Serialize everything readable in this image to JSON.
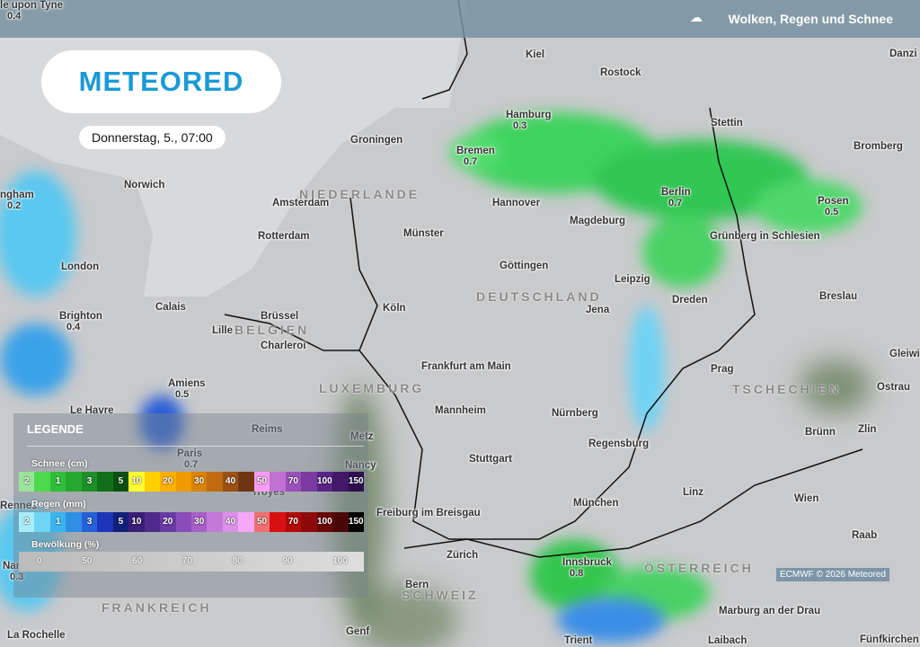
{
  "header": {
    "title": "Wolken, Regen und Schnee",
    "icon": "cloud-rain-snow-icon"
  },
  "logo": "METEORED",
  "date": "Donnerstag, 5., 07:00",
  "credit": "ECMWF © 2026 Meteored",
  "cities": [
    {
      "name": "Kiel"
    },
    {
      "name": "Rostock"
    },
    {
      "name": "Hamburg",
      "value": "0.3"
    },
    {
      "name": "Bremen",
      "value": "0.7"
    },
    {
      "name": "Groningen"
    },
    {
      "name": "Stettin"
    },
    {
      "name": "Bromberg"
    },
    {
      "name": "Norwich"
    },
    {
      "name": "Amsterdam"
    },
    {
      "name": "Hannover"
    },
    {
      "name": "Berlin",
      "value": "0.7"
    },
    {
      "name": "Posen",
      "value": "0.5"
    },
    {
      "name": "Rotterdam"
    },
    {
      "name": "Münster"
    },
    {
      "name": "Magdeburg"
    },
    {
      "name": "Grünberg in Schlesien"
    },
    {
      "name": "London"
    },
    {
      "name": "Göttingen"
    },
    {
      "name": "Leipzig"
    },
    {
      "name": "Dreden"
    },
    {
      "name": "Breslau"
    },
    {
      "name": "Brighton",
      "value": "0.4"
    },
    {
      "name": "Calais"
    },
    {
      "name": "Brüssel"
    },
    {
      "name": "Köln"
    },
    {
      "name": "Jena"
    },
    {
      "name": "Lille"
    },
    {
      "name": "Charleroi"
    },
    {
      "name": "Amiens",
      "value": "0.5"
    },
    {
      "name": "Frankfurt am Main"
    },
    {
      "name": "Prag"
    },
    {
      "name": "Le Havre"
    },
    {
      "name": "Mannheim"
    },
    {
      "name": "Nürnberg"
    },
    {
      "name": "Reims"
    },
    {
      "name": "Metz"
    },
    {
      "name": "Brünn"
    },
    {
      "name": "Zlin"
    },
    {
      "name": "Ostrau"
    },
    {
      "name": "Paris",
      "value": "0.7"
    },
    {
      "name": "Regensburg"
    },
    {
      "name": "Stuttgart"
    },
    {
      "name": "Nancy"
    },
    {
      "name": "Troyes"
    },
    {
      "name": "Linz"
    },
    {
      "name": "Wien"
    },
    {
      "name": "München"
    },
    {
      "name": "Freiburg im Breisgau"
    },
    {
      "name": "Raab"
    },
    {
      "name": "Zürich"
    },
    {
      "name": "Innsbruck",
      "value": "0.8"
    },
    {
      "name": "Nantes",
      "value": "0.3"
    },
    {
      "name": "Bern"
    },
    {
      "name": "Genf"
    },
    {
      "name": "Marburg an der Drau"
    },
    {
      "name": "La Rochelle"
    },
    {
      "name": "Trient"
    },
    {
      "name": "Laibach"
    },
    {
      "name": "Fünfkirchen"
    },
    {
      "name": "Rennes"
    },
    {
      "name": "Gleiwi"
    },
    {
      "name": "Danzi"
    },
    {
      "name": "ngham",
      "value": "0.2"
    },
    {
      "name": "le upon Tyne",
      "value": "0.4"
    }
  ],
  "countries": [
    "NIEDERLANDE",
    "DEUTSCHLAND",
    "BELGIEN",
    "LUXEMBURG",
    "TSCHECHIEN",
    "ÖSTERREICH",
    "SCHWEIZ",
    "FRANKREICH"
  ],
  "legend": {
    "title": "LEGENDE",
    "snow": {
      "label": "Schnee (cm)",
      "cells": [
        {
          "t": "2",
          "c": "#9be39b"
        },
        {
          "t": "",
          "c": "#4cd94c"
        },
        {
          "t": "1",
          "c": "#2fbf3a"
        },
        {
          "t": "",
          "c": "#26a82f"
        },
        {
          "t": "3",
          "c": "#1e8f26"
        },
        {
          "t": "",
          "c": "#10701a"
        },
        {
          "t": "5",
          "c": "#0a4f10"
        },
        {
          "t": "10",
          "c": "#ffff30"
        },
        {
          "t": "",
          "c": "#ffd000"
        },
        {
          "t": "20",
          "c": "#ffb000"
        },
        {
          "t": "",
          "c": "#f09a00"
        },
        {
          "t": "30",
          "c": "#d98300"
        },
        {
          "t": "",
          "c": "#c06a10"
        },
        {
          "t": "40",
          "c": "#9a5014"
        },
        {
          "t": "",
          "c": "#6e3612"
        },
        {
          "t": "50",
          "c": "#f79cf0"
        },
        {
          "t": "",
          "c": "#c070d0"
        },
        {
          "t": "70",
          "c": "#9a50b8"
        },
        {
          "t": "",
          "c": "#7a3aa0"
        },
        {
          "t": "100",
          "c": "#5a2486"
        },
        {
          "t": "",
          "c": "#431868"
        },
        {
          "t": "150",
          "c": "#2e0e50"
        }
      ]
    },
    "rain": {
      "label": "Regen (mm)",
      "cells": [
        {
          "t": "2",
          "c": "#a9ecfb"
        },
        {
          "t": "",
          "c": "#6fd5f5"
        },
        {
          "t": "1",
          "c": "#3ab3ee"
        },
        {
          "t": "",
          "c": "#2f8fe6"
        },
        {
          "t": "3",
          "c": "#2560d8"
        },
        {
          "t": "",
          "c": "#1c35b8"
        },
        {
          "t": "5",
          "c": "#13207a"
        },
        {
          "t": "10",
          "c": "#3a1e78"
        },
        {
          "t": "",
          "c": "#4f2a8c"
        },
        {
          "t": "20",
          "c": "#6a3aa4"
        },
        {
          "t": "",
          "c": "#8a4cb8"
        },
        {
          "t": "30",
          "c": "#a860c8"
        },
        {
          "t": "",
          "c": "#c478d8"
        },
        {
          "t": "40",
          "c": "#dc90e8"
        },
        {
          "t": "",
          "c": "#f6a8f6"
        },
        {
          "t": "50",
          "c": "#f07070"
        },
        {
          "t": "",
          "c": "#d81010"
        },
        {
          "t": "70",
          "c": "#b00a0a"
        },
        {
          "t": "",
          "c": "#8c0a0a"
        },
        {
          "t": "100",
          "c": "#6a0808"
        },
        {
          "t": "",
          "c": "#4a0606"
        },
        {
          "t": "150",
          "c": "#050505"
        }
      ]
    },
    "clouds": {
      "label": "Bewölkung (%)",
      "ticks": [
        "0",
        "50",
        "60",
        "70",
        "80",
        "90",
        "100"
      ]
    }
  }
}
